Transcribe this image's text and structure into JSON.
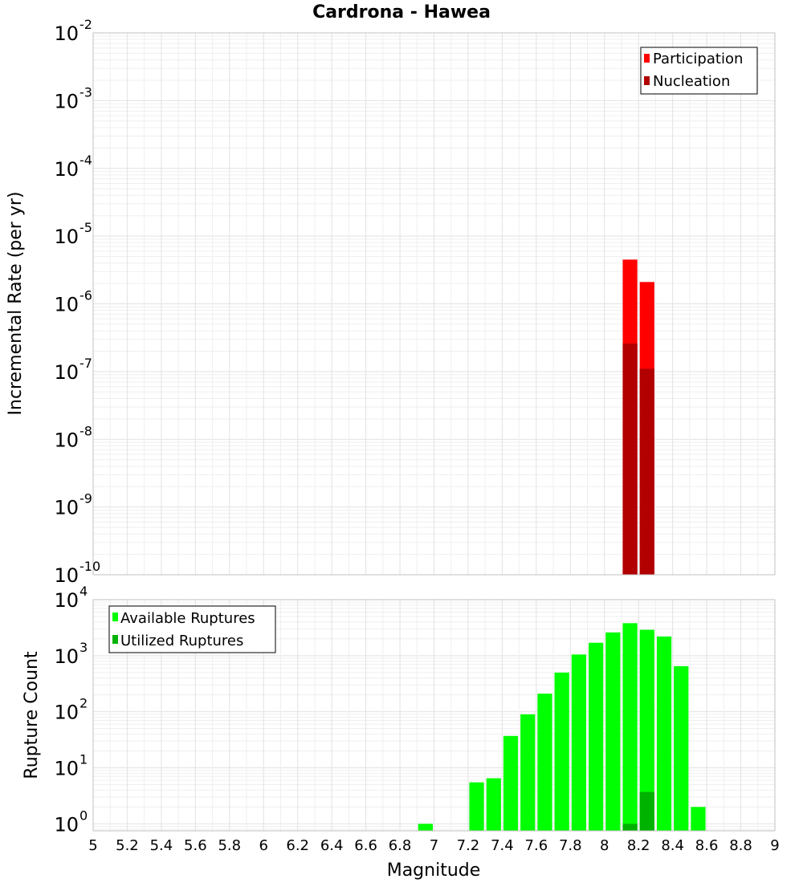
{
  "chart_data": [
    {
      "type": "bar",
      "title": "Cardrona - Hawea",
      "xlabel": "Magnitude",
      "ylabel": "Incremental Rate (per yr)",
      "yscale": "log",
      "ylim": [
        1e-10,
        0.01
      ],
      "xlim": [
        5,
        9
      ],
      "bar_width": 0.1,
      "grid": true,
      "legend_position": "top-right",
      "y_tick_labels": [
        {
          "base": "10",
          "exp": "-10"
        },
        {
          "base": "10",
          "exp": "-9"
        },
        {
          "base": "10",
          "exp": "-8"
        },
        {
          "base": "10",
          "exp": "-7"
        },
        {
          "base": "10",
          "exp": "-6"
        },
        {
          "base": "10",
          "exp": "-5"
        },
        {
          "base": "10",
          "exp": "-4"
        },
        {
          "base": "10",
          "exp": "-3"
        },
        {
          "base": "10",
          "exp": "-2"
        }
      ],
      "series": [
        {
          "name": "Participation",
          "color": "#ff0000",
          "x": [
            8.15,
            8.25
          ],
          "values": [
            4.5e-06,
            2.1e-06
          ]
        },
        {
          "name": "Nucleation",
          "color": "#b20000",
          "x": [
            8.15,
            8.25
          ],
          "values": [
            2.6e-07,
            1.1e-07
          ]
        }
      ]
    },
    {
      "type": "bar",
      "xlabel": "Magnitude",
      "ylabel": "Rupture Count",
      "yscale": "log",
      "ylim": [
        0.75,
        10000
      ],
      "xlim": [
        5,
        9
      ],
      "bar_width": 0.1,
      "grid": true,
      "legend_position": "top-left",
      "x_ticks": [
        "5",
        "5.2",
        "5.4",
        "5.6",
        "5.8",
        "6",
        "6.2",
        "6.4",
        "6.6",
        "6.8",
        "7",
        "7.2",
        "7.4",
        "7.6",
        "7.8",
        "8",
        "8.2",
        "8.4",
        "8.6",
        "8.8",
        "9"
      ],
      "y_tick_labels": [
        {
          "base": "10",
          "exp": "0"
        },
        {
          "base": "10",
          "exp": "1"
        },
        {
          "base": "10",
          "exp": "2"
        },
        {
          "base": "10",
          "exp": "3"
        },
        {
          "base": "10",
          "exp": "4"
        }
      ],
      "series": [
        {
          "name": "Available Ruptures",
          "color": "#00ff00",
          "x": [
            6.95,
            7.25,
            7.35,
            7.45,
            7.55,
            7.65,
            7.75,
            7.85,
            7.95,
            8.05,
            8.15,
            8.25,
            8.35,
            8.45,
            8.55
          ],
          "values": [
            1,
            5.5,
            6.5,
            37,
            90,
            210,
            500,
            1050,
            1700,
            2600,
            3800,
            2900,
            2200,
            650,
            2
          ]
        },
        {
          "name": "Utilized Ruptures",
          "color": "#00b200",
          "x": [
            8.15,
            8.25
          ],
          "values": [
            1,
            3.7
          ]
        }
      ]
    }
  ]
}
